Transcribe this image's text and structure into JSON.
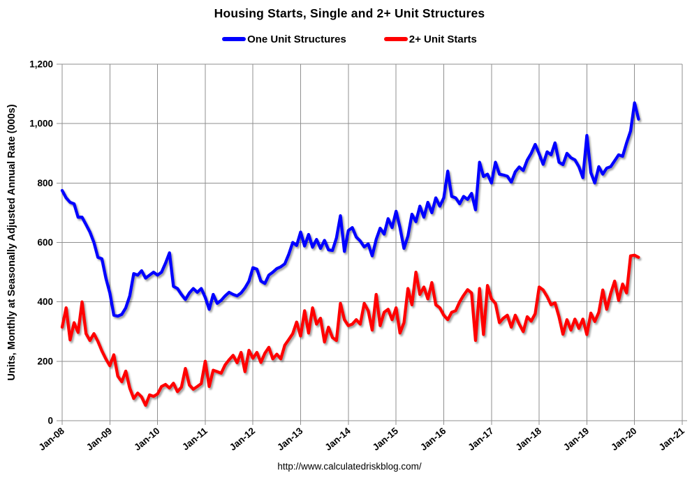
{
  "title": "Housing Starts, Single and 2+ Unit Structures",
  "legend": {
    "items": [
      {
        "label": "One Unit Structures",
        "color": "#0000ff"
      },
      {
        "label": "2+ Unit Starts",
        "color": "#ff0000"
      }
    ]
  },
  "y_axis": {
    "title": "Units, Monthly at Seasonally Adjusted Annual Rate (000s)",
    "tick_labels": [
      "0",
      "200",
      "400",
      "600",
      "800",
      "1,000",
      "1,200"
    ]
  },
  "x_axis": {
    "tick_labels": [
      "Jan-08",
      "Jan-09",
      "Jan-10",
      "Jan-11",
      "Jan-12",
      "Jan-13",
      "Jan-14",
      "Jan-15",
      "Jan-16",
      "Jan-17",
      "Jan-18",
      "Jan-19",
      "Jan-20",
      "Jan-21"
    ]
  },
  "footer": {
    "url": "http://www.calculatedriskblog.com/"
  },
  "chart_data": {
    "type": "line",
    "title": "Housing Starts, Single and 2+ Unit Structures",
    "ylabel": "Units, Monthly at Seasonally Adjusted Annual Rate (000s)",
    "xlabel": "",
    "ylim": [
      0,
      1200
    ],
    "y_gridline_step": 200,
    "grid": true,
    "legend_position": "top-center",
    "x_start": "Jan-2008",
    "x_end": "Feb-2020",
    "frequency": "monthly",
    "x_axis_range": [
      "Jan-2008",
      "Jan-2021"
    ],
    "x_tick_labels": [
      "Jan-08",
      "Jan-09",
      "Jan-10",
      "Jan-11",
      "Jan-12",
      "Jan-13",
      "Jan-14",
      "Jan-15",
      "Jan-16",
      "Jan-17",
      "Jan-18",
      "Jan-19",
      "Jan-20",
      "Jan-21"
    ],
    "units": "thousands, SAAR",
    "series": [
      {
        "name": "One Unit Structures",
        "color": "#0000ff",
        "values": [
          775,
          750,
          735,
          730,
          685,
          685,
          660,
          635,
          600,
          550,
          545,
          480,
          430,
          355,
          352,
          358,
          380,
          420,
          495,
          490,
          505,
          480,
          490,
          500,
          490,
          500,
          530,
          565,
          452,
          445,
          425,
          408,
          430,
          445,
          432,
          445,
          415,
          375,
          425,
          395,
          405,
          420,
          432,
          425,
          420,
          430,
          447,
          470,
          515,
          510,
          470,
          462,
          490,
          500,
          512,
          518,
          528,
          560,
          600,
          590,
          635,
          588,
          627,
          584,
          610,
          580,
          607,
          575,
          573,
          615,
          690,
          570,
          640,
          650,
          618,
          605,
          585,
          595,
          555,
          610,
          648,
          628,
          680,
          650,
          705,
          650,
          580,
          622,
          695,
          670,
          722,
          685,
          735,
          700,
          750,
          722,
          750,
          840,
          755,
          750,
          730,
          755,
          745,
          765,
          710,
          870,
          822,
          830,
          800,
          870,
          830,
          827,
          823,
          803,
          838,
          854,
          842,
          877,
          900,
          930,
          898,
          863,
          905,
          895,
          935,
          870,
          862,
          900,
          885,
          878,
          855,
          818,
          960,
          835,
          800,
          855,
          830,
          850,
          855,
          875,
          895,
          890,
          935,
          975,
          1070,
          1015
        ]
      },
      {
        "name": "2+ Unit Starts",
        "color": "#ff0000",
        "values": [
          315,
          380,
          272,
          330,
          297,
          400,
          293,
          270,
          293,
          267,
          235,
          208,
          185,
          222,
          150,
          131,
          167,
          110,
          75,
          93,
          80,
          52,
          87,
          82,
          90,
          115,
          122,
          110,
          126,
          98,
          113,
          176,
          120,
          106,
          115,
          125,
          200,
          115,
          170,
          165,
          160,
          188,
          205,
          220,
          195,
          230,
          165,
          237,
          210,
          230,
          196,
          227,
          247,
          208,
          224,
          208,
          254,
          273,
          293,
          332,
          285,
          370,
          295,
          380,
          325,
          345,
          265,
          315,
          280,
          270,
          395,
          340,
          320,
          325,
          340,
          325,
          395,
          370,
          305,
          425,
          320,
          365,
          375,
          340,
          380,
          295,
          330,
          445,
          390,
          500,
          425,
          450,
          410,
          465,
          390,
          380,
          355,
          340,
          365,
          370,
          400,
          422,
          441,
          430,
          270,
          445,
          290,
          455,
          410,
          395,
          330,
          345,
          355,
          315,
          355,
          325,
          300,
          350,
          335,
          360,
          450,
          440,
          418,
          390,
          397,
          350,
          291,
          340,
          305,
          342,
          311,
          342,
          290,
          362,
          334,
          365,
          440,
          375,
          428,
          470,
          405,
          460,
          430,
          555,
          557,
          550
        ]
      }
    ]
  }
}
